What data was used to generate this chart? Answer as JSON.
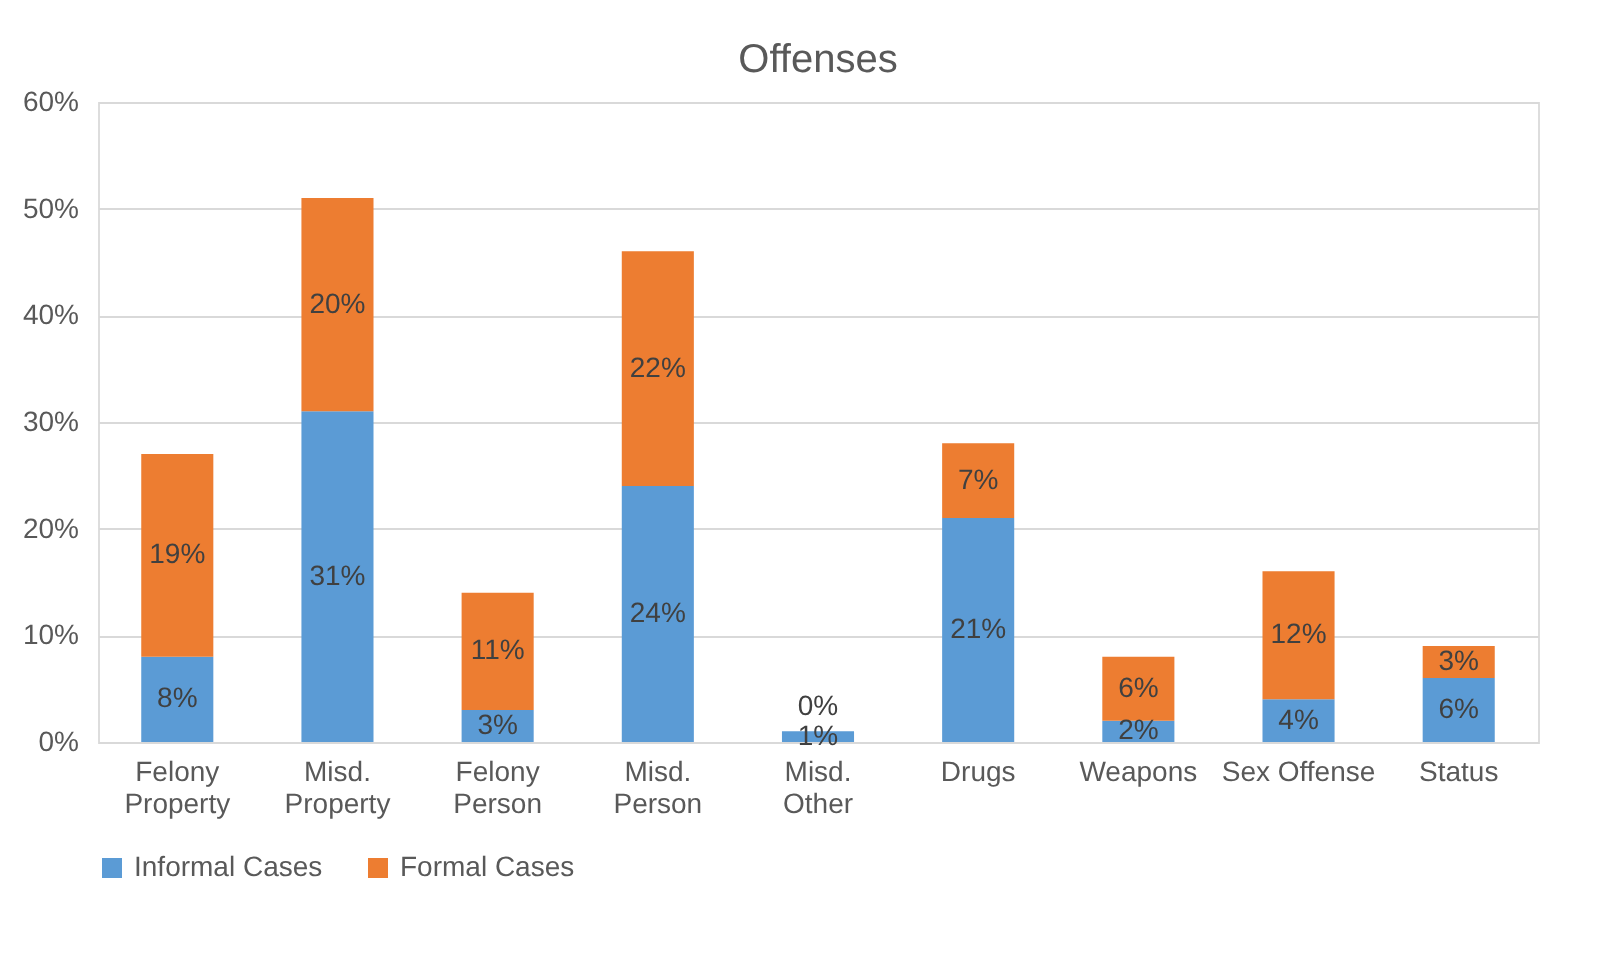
{
  "chart_data": {
    "type": "bar",
    "title": "Offenses",
    "stacked": true,
    "categories": [
      "Felony\nProperty",
      "Misd.\nProperty",
      "Felony\nPerson",
      "Misd.\nPerson",
      "Misd.\nOther",
      "Drugs",
      "Weapons",
      "Sex Offense",
      "Status"
    ],
    "series": [
      {
        "name": "Informal Cases",
        "color": "#5b9bd5",
        "values": [
          8,
          31,
          3,
          24,
          1,
          21,
          2,
          4,
          6
        ],
        "value_labels": [
          "8%",
          "31%",
          "3%",
          "24%",
          "1%",
          "21%",
          "2%",
          "4%",
          "6%"
        ]
      },
      {
        "name": "Formal Cases",
        "color": "#ed7d31",
        "values": [
          19,
          20,
          11,
          22,
          0,
          7,
          6,
          12,
          3
        ],
        "value_labels": [
          "19%",
          "20%",
          "11%",
          "22%",
          "0%",
          "7%",
          "6%",
          "12%",
          "3%"
        ]
      }
    ],
    "ylim": [
      0,
      60
    ],
    "yticks": [
      {
        "value": 0,
        "label": "0%"
      },
      {
        "value": 10,
        "label": "10%"
      },
      {
        "value": 20,
        "label": "20%"
      },
      {
        "value": 30,
        "label": "30%"
      },
      {
        "value": 40,
        "label": "40%"
      },
      {
        "value": 50,
        "label": "50%"
      },
      {
        "value": 60,
        "label": "60%"
      }
    ],
    "grid": "y",
    "legend": "bottom"
  }
}
